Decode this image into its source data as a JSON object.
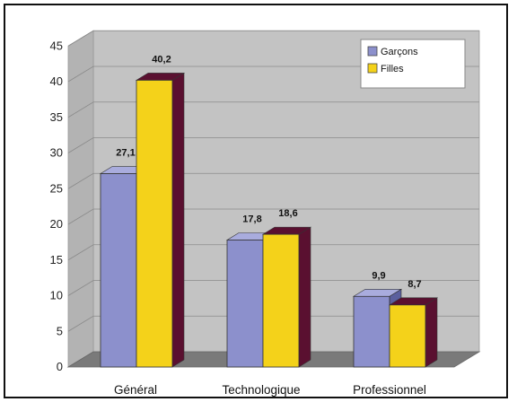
{
  "chart_data": {
    "type": "bar",
    "style": "3d-clustered-column",
    "title": "",
    "xlabel": "",
    "ylabel": "",
    "categories": [
      "Général",
      "Technologique",
      "Professionnel"
    ],
    "series": [
      {
        "name": "Garçons",
        "values": [
          27.1,
          17.8,
          9.9
        ],
        "labels": [
          "27,1",
          "17,8",
          "9,9"
        ],
        "color": "#8c90cc",
        "side_color": "#5b5f9e",
        "top_color": "#a9acdd"
      },
      {
        "name": "Filles",
        "values": [
          40.2,
          18.6,
          8.7
        ],
        "labels": [
          "40,2",
          "18,6",
          "8,7"
        ],
        "color": "#f4d21a",
        "side_color": "#5a1030",
        "top_color": "#5a1030"
      }
    ],
    "yticks": [
      "0",
      "5",
      "10",
      "15",
      "20",
      "25",
      "30",
      "35",
      "40",
      "45"
    ],
    "ylim": [
      0,
      45
    ],
    "grid": true,
    "legend_position": "top-right",
    "wall_color": "#c3c3c3",
    "floor_color": "#7a7a7a"
  }
}
